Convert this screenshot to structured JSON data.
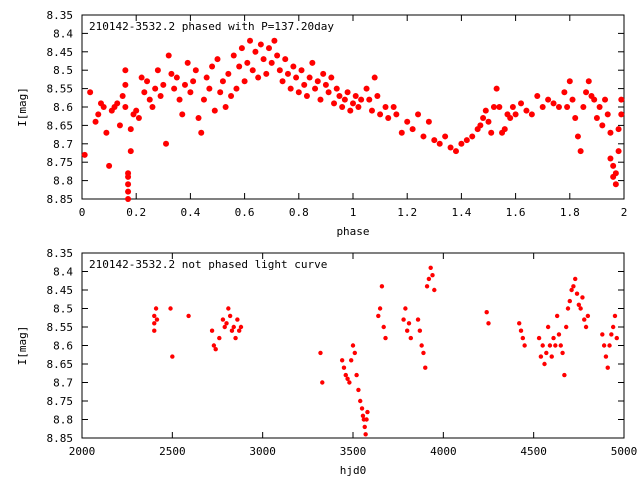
{
  "colors": {
    "points": "#ff0000",
    "axes": "#000000",
    "background": "#ffffff"
  },
  "chart_data": [
    {
      "type": "scatter",
      "title": "210142-3532.2 phased with P=137.20day",
      "xlabel": "phase",
      "ylabel": "I[mag]",
      "xlim": [
        0,
        2
      ],
      "ylim": [
        8.35,
        8.85
      ],
      "y_inverted": true,
      "grid": false,
      "marker": "filled-circle",
      "xticks": [
        "0",
        "0.2",
        "0.4",
        "0.6",
        "0.8",
        "1",
        "1.2",
        "1.4",
        "1.6",
        "1.8",
        "2"
      ],
      "xtick_values": [
        0,
        0.2,
        0.4,
        0.6,
        0.8,
        1.0,
        1.2,
        1.4,
        1.6,
        1.8,
        2.0
      ],
      "yticks": [
        "8.35",
        "8.4",
        "8.45",
        "8.5",
        "8.55",
        "8.6",
        "8.65",
        "8.7",
        "8.75",
        "8.8",
        "8.85"
      ],
      "ytick_values": [
        8.35,
        8.4,
        8.45,
        8.5,
        8.55,
        8.6,
        8.65,
        8.7,
        8.75,
        8.8,
        8.85
      ],
      "points": [
        [
          0.01,
          8.73
        ],
        [
          0.03,
          8.56
        ],
        [
          0.05,
          8.64
        ],
        [
          0.06,
          8.62
        ],
        [
          0.07,
          8.59
        ],
        [
          0.08,
          8.6
        ],
        [
          0.09,
          8.67
        ],
        [
          0.1,
          8.76
        ],
        [
          0.11,
          8.61
        ],
        [
          0.12,
          8.6
        ],
        [
          0.13,
          8.59
        ],
        [
          0.14,
          8.65
        ],
        [
          0.15,
          8.57
        ],
        [
          0.16,
          8.6
        ],
        [
          0.16,
          8.54
        ],
        [
          0.16,
          8.5
        ],
        [
          0.17,
          8.78
        ],
        [
          0.17,
          8.79
        ],
        [
          0.17,
          8.81
        ],
        [
          0.17,
          8.83
        ],
        [
          0.17,
          8.85
        ],
        [
          0.18,
          8.72
        ],
        [
          0.18,
          8.66
        ],
        [
          0.19,
          8.62
        ],
        [
          0.2,
          8.61
        ],
        [
          0.21,
          8.63
        ],
        [
          0.22,
          8.52
        ],
        [
          0.23,
          8.56
        ],
        [
          0.24,
          8.53
        ],
        [
          0.25,
          8.58
        ],
        [
          0.26,
          8.6
        ],
        [
          0.27,
          8.55
        ],
        [
          0.28,
          8.5
        ],
        [
          0.29,
          8.57
        ],
        [
          0.3,
          8.54
        ],
        [
          0.31,
          8.7
        ],
        [
          0.32,
          8.46
        ],
        [
          0.33,
          8.51
        ],
        [
          0.34,
          8.55
        ],
        [
          0.35,
          8.52
        ],
        [
          0.36,
          8.58
        ],
        [
          0.37,
          8.62
        ],
        [
          0.38,
          8.54
        ],
        [
          0.39,
          8.48
        ],
        [
          0.4,
          8.56
        ],
        [
          0.41,
          8.53
        ],
        [
          0.42,
          8.5
        ],
        [
          0.43,
          8.63
        ],
        [
          0.44,
          8.67
        ],
        [
          0.45,
          8.58
        ],
        [
          0.46,
          8.52
        ],
        [
          0.47,
          8.55
        ],
        [
          0.48,
          8.49
        ],
        [
          0.49,
          8.61
        ],
        [
          0.5,
          8.47
        ],
        [
          0.51,
          8.56
        ],
        [
          0.52,
          8.53
        ],
        [
          0.53,
          8.6
        ],
        [
          0.54,
          8.51
        ],
        [
          0.55,
          8.57
        ],
        [
          0.56,
          8.46
        ],
        [
          0.57,
          8.55
        ],
        [
          0.58,
          8.49
        ],
        [
          0.59,
          8.44
        ],
        [
          0.6,
          8.53
        ],
        [
          0.61,
          8.48
        ],
        [
          0.62,
          8.42
        ],
        [
          0.63,
          8.5
        ],
        [
          0.64,
          8.45
        ],
        [
          0.65,
          8.52
        ],
        [
          0.66,
          8.43
        ],
        [
          0.67,
          8.47
        ],
        [
          0.68,
          8.51
        ],
        [
          0.69,
          8.44
        ],
        [
          0.7,
          8.48
        ],
        [
          0.71,
          8.42
        ],
        [
          0.72,
          8.46
        ],
        [
          0.73,
          8.5
        ],
        [
          0.74,
          8.53
        ],
        [
          0.75,
          8.47
        ],
        [
          0.76,
          8.51
        ],
        [
          0.77,
          8.55
        ],
        [
          0.78,
          8.49
        ],
        [
          0.79,
          8.52
        ],
        [
          0.8,
          8.56
        ],
        [
          0.81,
          8.5
        ],
        [
          0.82,
          8.54
        ],
        [
          0.83,
          8.57
        ],
        [
          0.84,
          8.52
        ],
        [
          0.85,
          8.48
        ],
        [
          0.86,
          8.55
        ],
        [
          0.87,
          8.53
        ],
        [
          0.88,
          8.58
        ],
        [
          0.89,
          8.51
        ],
        [
          0.9,
          8.54
        ],
        [
          0.91,
          8.56
        ],
        [
          0.92,
          8.52
        ],
        [
          0.93,
          8.59
        ],
        [
          0.94,
          8.55
        ],
        [
          0.95,
          8.57
        ],
        [
          0.96,
          8.6
        ],
        [
          0.97,
          8.58
        ],
        [
          0.98,
          8.56
        ],
        [
          0.99,
          8.61
        ],
        [
          1.0,
          8.59
        ],
        [
          1.01,
          8.57
        ],
        [
          1.02,
          8.6
        ],
        [
          1.03,
          8.58
        ],
        [
          1.05,
          8.55
        ],
        [
          1.06,
          8.58
        ],
        [
          1.07,
          8.61
        ],
        [
          1.08,
          8.52
        ],
        [
          1.09,
          8.57
        ],
        [
          1.1,
          8.62
        ],
        [
          1.12,
          8.6
        ],
        [
          1.13,
          8.63
        ],
        [
          1.15,
          8.6
        ],
        [
          1.16,
          8.62
        ],
        [
          1.18,
          8.67
        ],
        [
          1.2,
          8.64
        ],
        [
          1.22,
          8.66
        ],
        [
          1.24,
          8.62
        ],
        [
          1.26,
          8.68
        ],
        [
          1.28,
          8.64
        ],
        [
          1.3,
          8.69
        ],
        [
          1.32,
          8.7
        ],
        [
          1.34,
          8.68
        ],
        [
          1.36,
          8.71
        ],
        [
          1.38,
          8.72
        ],
        [
          1.4,
          8.7
        ],
        [
          1.42,
          8.69
        ],
        [
          1.44,
          8.68
        ],
        [
          1.46,
          8.66
        ],
        [
          1.47,
          8.65
        ],
        [
          1.48,
          8.63
        ],
        [
          1.49,
          8.61
        ],
        [
          1.5,
          8.64
        ],
        [
          1.51,
          8.67
        ],
        [
          1.52,
          8.6
        ],
        [
          1.53,
          8.55
        ],
        [
          1.54,
          8.6
        ],
        [
          1.55,
          8.67
        ],
        [
          1.56,
          8.66
        ],
        [
          1.57,
          8.62
        ],
        [
          1.58,
          8.63
        ],
        [
          1.59,
          8.6
        ],
        [
          1.6,
          8.62
        ],
        [
          1.62,
          8.59
        ],
        [
          1.64,
          8.61
        ],
        [
          1.66,
          8.62
        ],
        [
          1.68,
          8.57
        ],
        [
          1.7,
          8.6
        ],
        [
          1.72,
          8.58
        ],
        [
          1.74,
          8.59
        ],
        [
          1.76,
          8.6
        ],
        [
          1.78,
          8.56
        ],
        [
          1.79,
          8.6
        ],
        [
          1.8,
          8.53
        ],
        [
          1.81,
          8.58
        ],
        [
          1.82,
          8.63
        ],
        [
          1.83,
          8.68
        ],
        [
          1.84,
          8.72
        ],
        [
          1.85,
          8.6
        ],
        [
          1.86,
          8.56
        ],
        [
          1.87,
          8.53
        ],
        [
          1.88,
          8.57
        ],
        [
          1.89,
          8.58
        ],
        [
          1.9,
          8.63
        ],
        [
          1.91,
          8.6
        ],
        [
          1.92,
          8.65
        ],
        [
          1.93,
          8.58
        ],
        [
          1.94,
          8.62
        ],
        [
          1.95,
          8.67
        ],
        [
          1.95,
          8.74
        ],
        [
          1.96,
          8.76
        ],
        [
          1.96,
          8.79
        ],
        [
          1.97,
          8.81
        ],
        [
          1.97,
          8.78
        ],
        [
          1.98,
          8.72
        ],
        [
          1.98,
          8.66
        ],
        [
          1.99,
          8.62
        ],
        [
          1.99,
          8.58
        ]
      ]
    },
    {
      "type": "scatter",
      "title": "210142-3532.2 not phased light curve",
      "xlabel": "hjd0",
      "ylabel": "I[mag]",
      "xlim": [
        2000,
        5000
      ],
      "ylim": [
        8.35,
        8.85
      ],
      "y_inverted": true,
      "grid": false,
      "marker": "filled-circle",
      "xticks": [
        "2000",
        "2500",
        "3000",
        "3500",
        "4000",
        "4500",
        "5000"
      ],
      "xtick_values": [
        2000,
        2500,
        3000,
        3500,
        4000,
        4500,
        5000
      ],
      "yticks": [
        "8.35",
        "8.4",
        "8.45",
        "8.5",
        "8.55",
        "8.6",
        "8.65",
        "8.7",
        "8.75",
        "8.8",
        "8.85"
      ],
      "ytick_values": [
        8.35,
        8.4,
        8.45,
        8.5,
        8.55,
        8.6,
        8.65,
        8.7,
        8.75,
        8.8,
        8.85
      ],
      "points": [
        [
          2400,
          8.54
        ],
        [
          2400,
          8.56
        ],
        [
          2400,
          8.52
        ],
        [
          2410,
          8.5
        ],
        [
          2415,
          8.53
        ],
        [
          2490,
          8.5
        ],
        [
          2500,
          8.63
        ],
        [
          2590,
          8.52
        ],
        [
          2720,
          8.56
        ],
        [
          2730,
          8.6
        ],
        [
          2740,
          8.61
        ],
        [
          2760,
          8.58
        ],
        [
          2780,
          8.53
        ],
        [
          2790,
          8.55
        ],
        [
          2800,
          8.54
        ],
        [
          2810,
          8.5
        ],
        [
          2820,
          8.52
        ],
        [
          2830,
          8.56
        ],
        [
          2840,
          8.55
        ],
        [
          2850,
          8.58
        ],
        [
          2860,
          8.53
        ],
        [
          2870,
          8.56
        ],
        [
          2880,
          8.55
        ],
        [
          3320,
          8.62
        ],
        [
          3330,
          8.7
        ],
        [
          3440,
          8.64
        ],
        [
          3450,
          8.66
        ],
        [
          3460,
          8.68
        ],
        [
          3470,
          8.69
        ],
        [
          3480,
          8.7
        ],
        [
          3490,
          8.64
        ],
        [
          3500,
          8.6
        ],
        [
          3510,
          8.62
        ],
        [
          3520,
          8.68
        ],
        [
          3530,
          8.72
        ],
        [
          3540,
          8.75
        ],
        [
          3550,
          8.77
        ],
        [
          3555,
          8.79
        ],
        [
          3560,
          8.8
        ],
        [
          3565,
          8.82
        ],
        [
          3570,
          8.84
        ],
        [
          3575,
          8.8
        ],
        [
          3580,
          8.78
        ],
        [
          3640,
          8.52
        ],
        [
          3650,
          8.5
        ],
        [
          3660,
          8.44
        ],
        [
          3670,
          8.55
        ],
        [
          3680,
          8.58
        ],
        [
          3780,
          8.53
        ],
        [
          3790,
          8.5
        ],
        [
          3800,
          8.56
        ],
        [
          3810,
          8.54
        ],
        [
          3820,
          8.58
        ],
        [
          3860,
          8.53
        ],
        [
          3870,
          8.56
        ],
        [
          3880,
          8.6
        ],
        [
          3890,
          8.62
        ],
        [
          3900,
          8.66
        ],
        [
          3910,
          8.44
        ],
        [
          3920,
          8.42
        ],
        [
          3930,
          8.39
        ],
        [
          3940,
          8.41
        ],
        [
          3950,
          8.45
        ],
        [
          4240,
          8.51
        ],
        [
          4250,
          8.54
        ],
        [
          4420,
          8.54
        ],
        [
          4430,
          8.56
        ],
        [
          4440,
          8.58
        ],
        [
          4450,
          8.6
        ],
        [
          4530,
          8.58
        ],
        [
          4540,
          8.63
        ],
        [
          4550,
          8.6
        ],
        [
          4560,
          8.65
        ],
        [
          4570,
          8.62
        ],
        [
          4580,
          8.55
        ],
        [
          4590,
          8.6
        ],
        [
          4600,
          8.63
        ],
        [
          4610,
          8.58
        ],
        [
          4620,
          8.6
        ],
        [
          4630,
          8.52
        ],
        [
          4640,
          8.57
        ],
        [
          4650,
          8.6
        ],
        [
          4660,
          8.62
        ],
        [
          4670,
          8.68
        ],
        [
          4680,
          8.55
        ],
        [
          4690,
          8.5
        ],
        [
          4700,
          8.48
        ],
        [
          4710,
          8.45
        ],
        [
          4720,
          8.44
        ],
        [
          4730,
          8.42
        ],
        [
          4740,
          8.46
        ],
        [
          4750,
          8.49
        ],
        [
          4760,
          8.5
        ],
        [
          4770,
          8.47
        ],
        [
          4780,
          8.53
        ],
        [
          4790,
          8.55
        ],
        [
          4800,
          8.52
        ],
        [
          4880,
          8.57
        ],
        [
          4890,
          8.6
        ],
        [
          4900,
          8.63
        ],
        [
          4910,
          8.66
        ],
        [
          4920,
          8.6
        ],
        [
          4930,
          8.57
        ],
        [
          4940,
          8.55
        ],
        [
          4950,
          8.52
        ],
        [
          4960,
          8.58
        ]
      ]
    }
  ]
}
